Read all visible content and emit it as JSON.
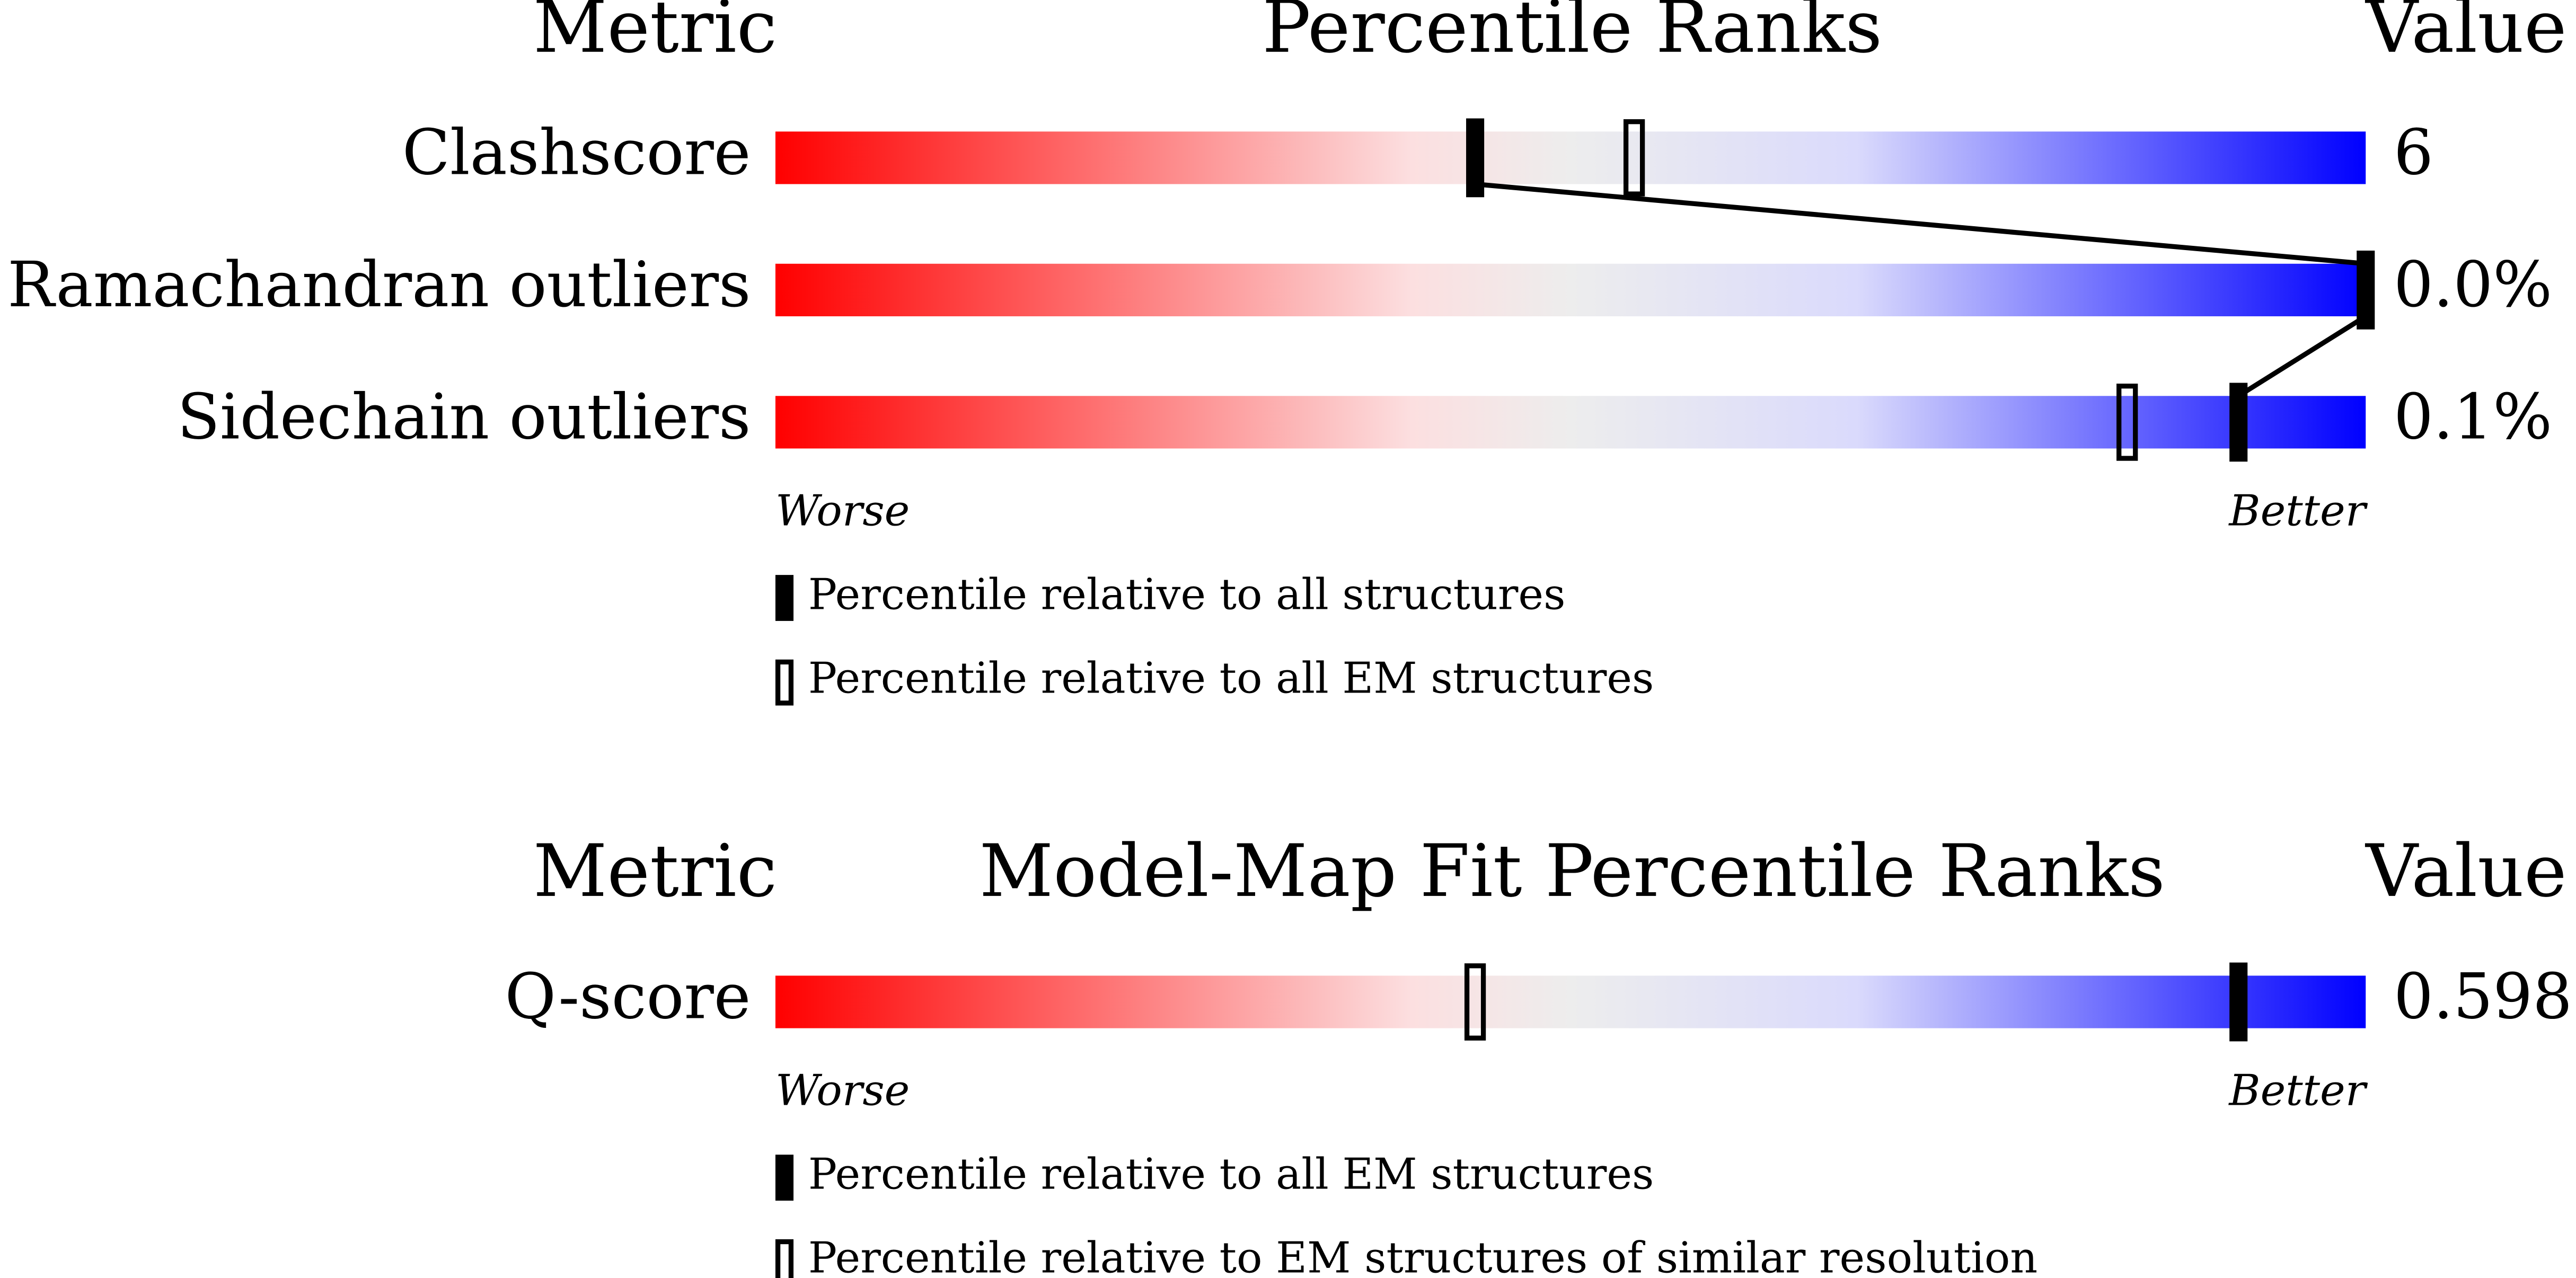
{
  "chart_data": [
    {
      "type": "slider",
      "header": {
        "metric": "Metric",
        "title": "Percentile Ranks",
        "value": "Value"
      },
      "xlim": [
        0,
        100
      ],
      "connect": true,
      "rows": [
        {
          "metric": "Clashscore",
          "value": 6,
          "percentiles": [
            44,
            54
          ]
        },
        {
          "metric": "Ramachandran outliers",
          "value": "0.0%",
          "percentiles": [
            100,
            null
          ]
        },
        {
          "metric": "Sidechain outliers",
          "value": "0.1%",
          "percentiles": [
            92,
            85
          ]
        }
      ],
      "worse": "Worse",
      "better": "Better",
      "legend": [
        {
          "label": "Percentile relative to all structures",
          "style": "filled"
        },
        {
          "label": "Percentile relative to all EM structures",
          "style": "open"
        }
      ]
    },
    {
      "type": "slider",
      "header": {
        "metric": "Metric",
        "title": "Model-Map Fit Percentile Ranks",
        "value": "Value"
      },
      "xlim": [
        0,
        100
      ],
      "connect": false,
      "rows": [
        {
          "metric": "Q-score",
          "value": 0.598,
          "percentiles": [
            92,
            44
          ]
        }
      ],
      "worse": "Worse",
      "better": "Better",
      "legend": [
        {
          "label": "Percentile relative to all EM structures",
          "style": "filled"
        },
        {
          "label": "Percentile relative to EM structures of similar resolution",
          "style": "open"
        }
      ]
    }
  ]
}
